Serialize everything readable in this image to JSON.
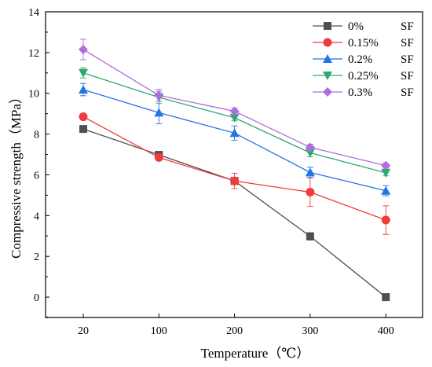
{
  "chart_data": {
    "type": "line",
    "xlabel": "Temperature（℃）",
    "ylabel": "Compressive strength（MPa）",
    "categories": [
      "20",
      "100",
      "200",
      "300",
      "400"
    ],
    "ylim": [
      -1,
      14
    ],
    "yticks": [
      "0",
      "2",
      "4",
      "6",
      "8",
      "10",
      "12",
      "14"
    ],
    "legend_position": "top-right",
    "series": [
      {
        "name": "0%",
        "name_suffix": "SF",
        "marker": "square",
        "color": "#505050",
        "values": [
          8.25,
          6.98,
          5.7,
          2.98,
          0.0
        ],
        "errors": [
          0.15,
          0.08,
          0.12,
          0.18,
          0.0
        ]
      },
      {
        "name": "0.15%",
        "name_suffix": "SF",
        "marker": "circle",
        "color": "#ef3b3b",
        "values": [
          8.85,
          6.85,
          5.7,
          5.15,
          3.78
        ],
        "errors": [
          0.1,
          0.12,
          0.38,
          0.7,
          0.7
        ]
      },
      {
        "name": "0.2%",
        "name_suffix": "SF",
        "marker": "triangle-up",
        "color": "#2574e6",
        "values": [
          10.18,
          9.05,
          8.05,
          6.12,
          5.22
        ],
        "errors": [
          0.3,
          0.55,
          0.35,
          0.25,
          0.25
        ]
      },
      {
        "name": "0.25%",
        "name_suffix": "SF",
        "marker": "triangle-down",
        "color": "#2eaa6e",
        "values": [
          11.0,
          9.8,
          8.8,
          7.08,
          6.1
        ],
        "errors": [
          0.25,
          0.3,
          0.15,
          0.2,
          0.15
        ]
      },
      {
        "name": "0.3%",
        "name_suffix": "SF",
        "marker": "diamond",
        "color": "#b06de0",
        "values": [
          12.15,
          9.9,
          9.12,
          7.35,
          6.45
        ],
        "errors": [
          0.5,
          0.3,
          0.15,
          0.15,
          0.12
        ]
      }
    ]
  }
}
